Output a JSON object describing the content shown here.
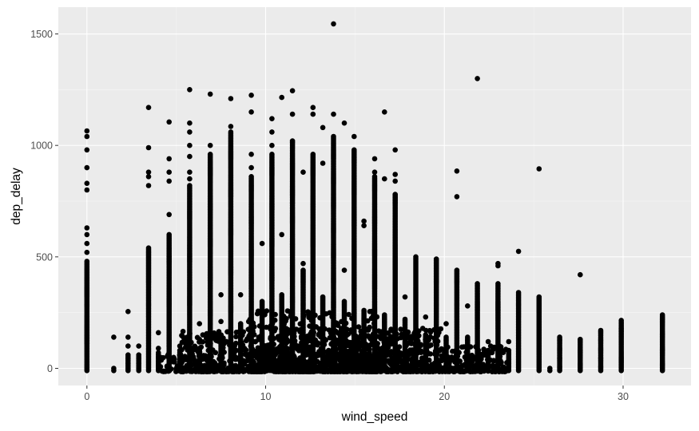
{
  "colors": {
    "panel": "#ebebeb",
    "grid_major": "#ffffff",
    "grid_minor": "#f5f5f5",
    "point": "#000000",
    "tick": "#4d4d4d"
  },
  "chart_data": {
    "type": "scatter",
    "title": "",
    "xlabel": "wind_speed",
    "ylabel": "dep_delay",
    "xlim": [
      -1.6,
      33.8
    ],
    "ylim": [
      -77,
      1620
    ],
    "x_ticks": [
      0,
      10,
      20,
      30
    ],
    "x_tick_labels": [
      "0",
      "10",
      "20",
      "30"
    ],
    "y_ticks": [
      0,
      500,
      1000,
      1500
    ],
    "y_tick_labels": [
      "0",
      "500",
      "1000",
      "1500"
    ],
    "grid": true,
    "legend": "none",
    "series": [
      {
        "columns": [
          {
            "x": 0,
            "dense_max": 480,
            "extra": [
              520,
              560,
              600,
              630,
              800,
              830,
              900,
              980,
              1040,
              1065
            ]
          },
          {
            "x": 1.5,
            "dense_max": 0,
            "extra": [
              140
            ]
          },
          {
            "x": 2.3,
            "dense_max": 60,
            "extra": [
              100,
              140,
              255
            ]
          },
          {
            "x": 2.9,
            "dense_max": 60,
            "extra": [
              100
            ]
          },
          {
            "x": 3.45,
            "dense_max": 540,
            "extra": [
              820,
              860,
              880,
              990,
              1170
            ]
          },
          {
            "x": 4.0,
            "dense_max": 70,
            "extra": [
              90,
              160
            ]
          },
          {
            "x": 4.6,
            "dense_max": 600,
            "extra": [
              690,
              840,
              880,
              940,
              1105
            ]
          },
          {
            "x": 5.2,
            "dense_max": 80,
            "extra": [
              100
            ]
          },
          {
            "x": 5.75,
            "dense_max": 820,
            "extra": [
              850,
              880,
              950,
              1000,
              1060,
              1100,
              1250
            ]
          },
          {
            "x": 6.3,
            "dense_max": 90,
            "extra": [
              130,
              200
            ]
          },
          {
            "x": 6.9,
            "dense_max": 960,
            "extra": [
              1000,
              1230
            ]
          },
          {
            "x": 7.5,
            "dense_max": 120,
            "extra": [
              210,
              330
            ]
          },
          {
            "x": 8.05,
            "dense_max": 1060,
            "extra": [
              1085,
              1210
            ]
          },
          {
            "x": 8.6,
            "dense_max": 200,
            "extra": [
              330
            ]
          },
          {
            "x": 9.2,
            "dense_max": 860,
            "extra": [
              900,
              960,
              1150,
              1225
            ]
          },
          {
            "x": 9.8,
            "dense_max": 300,
            "extra": [
              560
            ]
          },
          {
            "x": 10.35,
            "dense_max": 960,
            "extra": [
              1000,
              1060,
              1120
            ]
          },
          {
            "x": 10.9,
            "dense_max": 330,
            "extra": [
              600,
              1215
            ]
          },
          {
            "x": 11.5,
            "dense_max": 1020,
            "extra": [
              1140,
              1245
            ]
          },
          {
            "x": 12.1,
            "dense_max": 440,
            "extra": [
              470,
              880
            ]
          },
          {
            "x": 12.65,
            "dense_max": 960,
            "extra": [
              1140,
              1170
            ]
          },
          {
            "x": 13.2,
            "dense_max": 320,
            "extra": [
              920,
              1080
            ]
          },
          {
            "x": 13.8,
            "dense_max": 1040,
            "extra": [
              1140,
              1545
            ]
          },
          {
            "x": 14.4,
            "dense_max": 300,
            "extra": [
              440,
              1100
            ]
          },
          {
            "x": 14.95,
            "dense_max": 980,
            "extra": [
              1040
            ]
          },
          {
            "x": 15.5,
            "dense_max": 260,
            "extra": [
              640,
              660
            ]
          },
          {
            "x": 16.1,
            "dense_max": 860,
            "extra": [
              880,
              940
            ]
          },
          {
            "x": 16.65,
            "dense_max": 240,
            "extra": [
              850,
              1150
            ]
          },
          {
            "x": 17.25,
            "dense_max": 780,
            "extra": [
              840,
              870,
              980
            ]
          },
          {
            "x": 17.8,
            "dense_max": 220,
            "extra": [
              320
            ]
          },
          {
            "x": 18.4,
            "dense_max": 500,
            "extra": []
          },
          {
            "x": 18.95,
            "dense_max": 150,
            "extra": [
              230
            ]
          },
          {
            "x": 19.55,
            "dense_max": 490,
            "extra": []
          },
          {
            "x": 20.1,
            "dense_max": 140,
            "extra": [
              200
            ]
          },
          {
            "x": 20.7,
            "dense_max": 440,
            "extra": [
              770,
              885
            ]
          },
          {
            "x": 21.3,
            "dense_max": 140,
            "extra": [
              280
            ]
          },
          {
            "x": 21.85,
            "dense_max": 380,
            "extra": [
              1300
            ]
          },
          {
            "x": 22.45,
            "dense_max": 80,
            "extra": [
              120
            ]
          },
          {
            "x": 23.0,
            "dense_max": 380,
            "extra": [
              460,
              470
            ]
          },
          {
            "x": 23.6,
            "dense_max": 80,
            "extra": [
              120
            ]
          },
          {
            "x": 24.15,
            "dense_max": 340,
            "extra": [
              525
            ]
          },
          {
            "x": 25.3,
            "dense_max": 320,
            "extra": [
              895
            ]
          },
          {
            "x": 25.9,
            "dense_max": 0,
            "extra": []
          },
          {
            "x": 26.45,
            "dense_max": 140,
            "extra": []
          },
          {
            "x": 27.6,
            "dense_max": 130,
            "extra": [
              420
            ]
          },
          {
            "x": 28.75,
            "dense_max": 170,
            "extra": []
          },
          {
            "x": 29.9,
            "dense_max": 215,
            "extra": []
          },
          {
            "x": 32.2,
            "dense_max": 240,
            "extra": []
          }
        ]
      }
    ]
  }
}
